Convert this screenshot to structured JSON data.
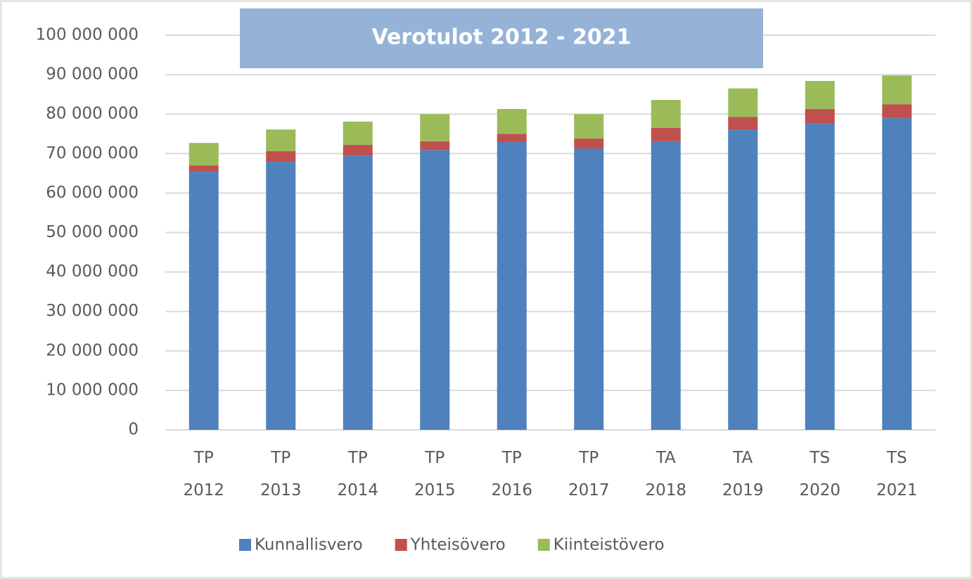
{
  "chart_data": {
    "type": "stacked_bar",
    "title": "Verotulot 2012 - 2021",
    "categories": [
      "TP 2012",
      "TP 2013",
      "TP 2014",
      "TP 2015",
      "TP 2016",
      "TP 2017",
      "TA 2018",
      "TA 2019",
      "TS 2020",
      "TS 2021"
    ],
    "series": [
      {
        "name": "Kunnallisvero",
        "color": "#4f81bd",
        "values": [
          65400000,
          67900000,
          69500000,
          70900000,
          72900000,
          71300000,
          73100000,
          76100000,
          77700000,
          79000000
        ]
      },
      {
        "name": "Yhteisövero",
        "color": "#c0504d",
        "values": [
          1600000,
          2700000,
          2700000,
          2200000,
          2100000,
          2500000,
          3400000,
          3200000,
          3600000,
          3500000
        ]
      },
      {
        "name": "Kiinteistövero",
        "color": "#9bbb59",
        "values": [
          5700000,
          5500000,
          5900000,
          6900000,
          6300000,
          6200000,
          7100000,
          7200000,
          7100000,
          7300000
        ]
      }
    ],
    "ylim": [
      0,
      100000000
    ],
    "yticks": [
      0,
      {
        "value": 10000000,
        "label": "10 000 000"
      },
      {
        "value": 20000000,
        "label": "20 000 000"
      },
      {
        "value": 30000000,
        "label": "30 000 000"
      },
      {
        "value": 40000000,
        "label": "40 000 000"
      },
      {
        "value": 50000000,
        "label": "50 000 000"
      },
      {
        "value": 60000000,
        "label": "60 000 000"
      },
      {
        "value": 70000000,
        "label": "70 000 000"
      },
      {
        "value": 80000000,
        "label": "80 000 000"
      },
      {
        "value": 90000000,
        "label": "90 000 000"
      },
      {
        "value": 100000000,
        "label": "100 000 000"
      }
    ],
    "grid": true,
    "legend": "bottom"
  }
}
